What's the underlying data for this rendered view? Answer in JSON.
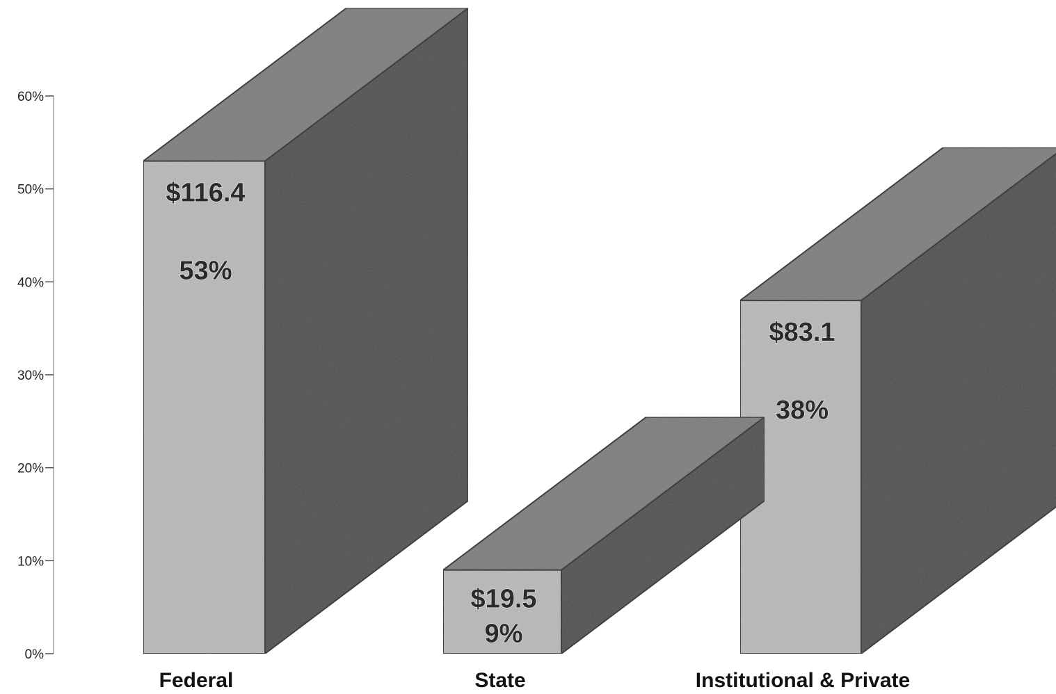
{
  "chart_data": {
    "type": "bar",
    "style": "3d",
    "title": "",
    "xlabel": "",
    "ylabel": "",
    "ylim": [
      0,
      60
    ],
    "y_ticks": [
      "0%",
      "10%",
      "20%",
      "30%",
      "40%",
      "50%",
      "60%"
    ],
    "grid": false,
    "categories": [
      "Federal",
      "State",
      "Institutional & Private"
    ],
    "values": [
      53,
      9,
      38
    ],
    "amount_labels": [
      "$116.4",
      "$19.5",
      "$83.1"
    ],
    "percent_labels": [
      "53%",
      "9%",
      "38%"
    ],
    "colors": {
      "front": "#b8b8b8",
      "top": "#7a7a7a",
      "side": "#454545",
      "outline": "#111111"
    }
  }
}
